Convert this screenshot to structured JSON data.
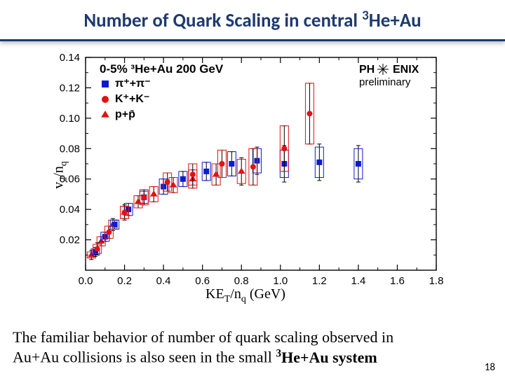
{
  "title": {
    "pre": "Number of Quark Scaling in central ",
    "sup": "3",
    "post": "He+Au",
    "color": "#1f3a6e",
    "fontsize": 27
  },
  "caption": {
    "line1": "The familiar behavior of number of quark scaling observed in",
    "line2_pre": "Au+Au collisions is also seen in the small ",
    "line2_sup": "3",
    "line2_post": "He+Au system",
    "fontsize": 22
  },
  "page_number": "18",
  "chart": {
    "type": "scatter",
    "background_color": "#ffffff",
    "plot_box_stroke": "#000000",
    "xlabel": "KE_T/n_q (GeV)",
    "ylabel": "v_2/n_q",
    "xlim": [
      0.0,
      1.8
    ],
    "ylim": [
      0.0,
      0.14
    ],
    "xticks": [
      0.0,
      0.2,
      0.4,
      0.6,
      0.8,
      1.0,
      1.2,
      1.4,
      1.6,
      1.8
    ],
    "yticks": [
      0.02,
      0.04,
      0.06,
      0.08,
      0.1,
      0.12,
      0.14
    ],
    "label_fontsize": 20,
    "tick_fontsize": 15,
    "header_text": "0-5% ³He+Au 200 GeV",
    "header_fontsize": 17,
    "phenix_label": "PH ENIX",
    "phenix_sub": "preliminary",
    "legend": [
      {
        "key": "pions",
        "marker": "square",
        "color": "#0b1bd1",
        "label": "π⁺+π⁻"
      },
      {
        "key": "kaons",
        "marker": "circle",
        "color": "#e01212",
        "label": "K⁺+K⁻"
      },
      {
        "key": "protons",
        "marker": "triangle",
        "color": "#e01212",
        "label": "p+p̄"
      }
    ],
    "series": {
      "pions": {
        "marker": "square",
        "color": "#0b1bd1",
        "size": 8,
        "points": [
          {
            "x": 0.05,
            "y": 0.012,
            "eylo": 0.003,
            "eyhi": 0.003,
            "box": 0.002
          },
          {
            "x": 0.1,
            "y": 0.022,
            "eylo": 0.003,
            "eyhi": 0.003,
            "box": 0.003
          },
          {
            "x": 0.15,
            "y": 0.03,
            "eylo": 0.003,
            "eyhi": 0.003,
            "box": 0.003
          },
          {
            "x": 0.22,
            "y": 0.04,
            "eylo": 0.004,
            "eyhi": 0.004,
            "box": 0.004
          },
          {
            "x": 0.3,
            "y": 0.048,
            "eylo": 0.004,
            "eyhi": 0.004,
            "box": 0.004
          },
          {
            "x": 0.4,
            "y": 0.055,
            "eylo": 0.005,
            "eyhi": 0.005,
            "box": 0.005
          },
          {
            "x": 0.5,
            "y": 0.06,
            "eylo": 0.005,
            "eyhi": 0.005,
            "box": 0.005
          },
          {
            "x": 0.62,
            "y": 0.065,
            "eylo": 0.006,
            "eyhi": 0.006,
            "box": 0.006
          },
          {
            "x": 0.75,
            "y": 0.07,
            "eylo": 0.008,
            "eyhi": 0.008,
            "box": 0.008
          },
          {
            "x": 0.88,
            "y": 0.072,
            "eylo": 0.009,
            "eyhi": 0.009,
            "box": 0.008
          },
          {
            "x": 1.02,
            "y": 0.07,
            "eylo": 0.012,
            "eyhi": 0.012,
            "box": 0.009
          },
          {
            "x": 1.2,
            "y": 0.071,
            "eylo": 0.012,
            "eyhi": 0.012,
            "box": 0.01
          },
          {
            "x": 1.4,
            "y": 0.07,
            "eylo": 0.012,
            "eyhi": 0.012,
            "box": 0.01
          }
        ]
      },
      "kaons": {
        "marker": "circle",
        "color": "#e01212",
        "size": 8,
        "points": [
          {
            "x": 0.06,
            "y": 0.014,
            "eylo": 0.004,
            "eyhi": 0.004,
            "box": 0.003
          },
          {
            "x": 0.12,
            "y": 0.025,
            "eylo": 0.004,
            "eyhi": 0.004,
            "box": 0.004
          },
          {
            "x": 0.2,
            "y": 0.038,
            "eylo": 0.005,
            "eyhi": 0.005,
            "box": 0.004
          },
          {
            "x": 0.3,
            "y": 0.048,
            "eylo": 0.005,
            "eyhi": 0.005,
            "box": 0.005
          },
          {
            "x": 0.42,
            "y": 0.058,
            "eylo": 0.006,
            "eyhi": 0.006,
            "box": 0.006
          },
          {
            "x": 0.55,
            "y": 0.063,
            "eylo": 0.007,
            "eyhi": 0.007,
            "box": 0.007
          },
          {
            "x": 0.7,
            "y": 0.07,
            "eylo": 0.009,
            "eyhi": 0.009,
            "box": 0.009
          },
          {
            "x": 0.86,
            "y": 0.068,
            "eylo": 0.012,
            "eyhi": 0.012,
            "box": 0.012
          },
          {
            "x": 1.02,
            "y": 0.08,
            "eylo": 0.015,
            "eyhi": 0.015,
            "box": 0.015
          },
          {
            "x": 1.15,
            "y": 0.103,
            "eylo": 0.02,
            "eyhi": 0.02,
            "box": 0.02
          }
        ]
      },
      "protons": {
        "marker": "triangle",
        "color": "#e01212",
        "size": 9,
        "points": [
          {
            "x": 0.03,
            "y": 0.01,
            "eylo": 0.003,
            "eyhi": 0.003,
            "box": 0.002
          },
          {
            "x": 0.08,
            "y": 0.019,
            "eylo": 0.003,
            "eyhi": 0.003,
            "box": 0.003
          },
          {
            "x": 0.14,
            "y": 0.03,
            "eylo": 0.004,
            "eyhi": 0.004,
            "box": 0.003
          },
          {
            "x": 0.2,
            "y": 0.038,
            "eylo": 0.004,
            "eyhi": 0.004,
            "box": 0.004
          },
          {
            "x": 0.27,
            "y": 0.045,
            "eylo": 0.004,
            "eyhi": 0.004,
            "box": 0.004
          },
          {
            "x": 0.35,
            "y": 0.05,
            "eylo": 0.005,
            "eyhi": 0.005,
            "box": 0.005
          },
          {
            "x": 0.45,
            "y": 0.056,
            "eylo": 0.005,
            "eyhi": 0.005,
            "box": 0.005
          },
          {
            "x": 0.55,
            "y": 0.06,
            "eylo": 0.006,
            "eyhi": 0.006,
            "box": 0.006
          },
          {
            "x": 0.67,
            "y": 0.063,
            "eylo": 0.007,
            "eyhi": 0.007,
            "box": 0.007
          },
          {
            "x": 0.8,
            "y": 0.065,
            "eylo": 0.009,
            "eyhi": 0.009,
            "box": 0.008
          }
        ]
      }
    }
  }
}
